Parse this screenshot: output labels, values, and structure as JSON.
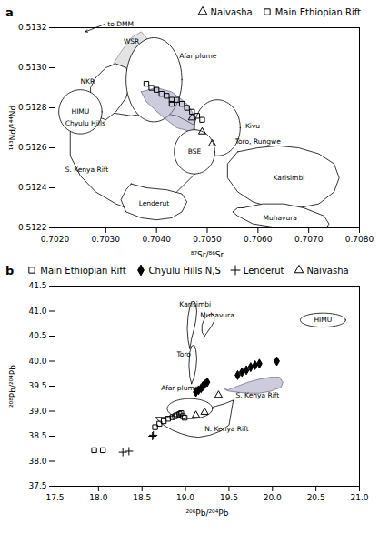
{
  "chart_data": [
    {
      "type": "scatter",
      "title": "a",
      "xlabel": "⁸⁷Sr/⁸⁶Sr",
      "ylabel": "¹⁴³Nd/¹⁴⁴Nd",
      "xlim": [
        0.702,
        0.708
      ],
      "ylim": [
        0.5122,
        0.5132
      ],
      "xticks": [
        {
          "value": 0.702,
          "label": "0.7020"
        },
        {
          "value": 0.703,
          "label": "0.7030"
        },
        {
          "value": 0.704,
          "label": "0.7040"
        },
        {
          "value": 0.705,
          "label": "0.7050"
        },
        {
          "value": 0.706,
          "label": "0.7060"
        },
        {
          "value": 0.707,
          "label": "0.7070"
        },
        {
          "value": 0.708,
          "label": "0.7080"
        }
      ],
      "yticks": [
        0.5122,
        0.5124,
        0.5126,
        0.5128,
        {
          "value": 0.513,
          "label": "0.5130"
        },
        0.5132
      ],
      "legend": "upper right",
      "series": [
        {
          "name": "Naivasha",
          "marker": "triangle_open",
          "color": "black",
          "x": [
            0.7047,
            0.7049,
            0.7051
          ],
          "y": [
            0.51275,
            0.51268,
            0.51262
          ]
        },
        {
          "name": "Main Ethiopian Rift",
          "marker": "square_open",
          "color": "black",
          "x": [
            0.7038,
            0.7039,
            0.704,
            0.7041,
            0.7042,
            0.7043,
            0.7043,
            0.7044,
            0.7045,
            0.7046,
            0.7047,
            0.7048,
            0.7049
          ],
          "y": [
            0.51292,
            0.5129,
            0.51289,
            0.51287,
            0.51286,
            0.51284,
            0.51282,
            0.51284,
            0.51282,
            0.5128,
            0.51278,
            0.51276,
            0.51274
          ]
        }
      ],
      "regions": [
        {
          "type": "polygon",
          "color": "#c8c8c8",
          "x": [
            0.7031,
            0.7033,
            0.7035,
            0.7037,
            0.7038,
            0.7039,
            0.7038,
            0.7036,
            0.7034,
            0.7032,
            0.7031
          ],
          "y": [
            0.513,
            0.51308,
            0.51315,
            0.51318,
            0.51315,
            0.51308,
            0.513,
            0.51295,
            0.51293,
            0.51295,
            0.513
          ]
        },
        {
          "type": "polygon",
          "color": "white",
          "x": [
            0.7026,
            0.703,
            0.7035,
            0.704,
            0.7044,
            0.7047,
            0.705,
            0.7052,
            0.7051,
            0.7048,
            0.7044,
            0.704,
            0.7036,
            0.7032,
            0.7028,
            0.7025,
            0.7023,
            0.7023,
            0.7025,
            0.7026
          ],
          "y": [
            0.5128,
            0.51278,
            0.51276,
            0.51278,
            0.51276,
            0.51272,
            0.51268,
            0.51262,
            0.51255,
            0.51248,
            0.51238,
            0.5123,
            0.51228,
            0.51232,
            0.51238,
            0.51246,
            0.51256,
            0.51268,
            0.51276,
            0.5128
          ]
        },
        {
          "type": "polygon",
          "color": "white",
          "x": [
            0.7056,
            0.706,
            0.7064,
            0.7068,
            0.7072,
            0.7075,
            0.7076,
            0.7075,
            0.7072,
            0.7068,
            0.7063,
            0.7059,
            0.7056,
            0.7054,
            0.7054,
            0.7056
          ],
          "y": [
            0.51258,
            0.5126,
            0.51261,
            0.5126,
            0.51257,
            0.51252,
            0.51245,
            0.51238,
            0.51232,
            0.5123,
            0.5123,
            0.51233,
            0.51238,
            0.51245,
            0.51252,
            0.51258
          ]
        },
        {
          "type": "polygon",
          "color": "white",
          "x": [
            0.7057,
            0.7061,
            0.7065,
            0.7069,
            0.7073,
            0.7074,
            0.7073,
            0.7069,
            0.7064,
            0.7059,
            0.7056,
            0.7055,
            0.7056,
            0.7057
          ],
          "y": [
            0.5123,
            0.51232,
            0.51232,
            0.5123,
            0.51226,
            0.51222,
            0.51218,
            0.51218,
            0.5122,
            0.51222,
            0.51226,
            0.51228,
            0.5123,
            0.5123
          ]
        },
        {
          "type": "polygon",
          "color": "white",
          "x": [
            0.7035,
            0.7038,
            0.7042,
            0.7045,
            0.7046,
            0.7045,
            0.7043,
            0.704,
            0.7037,
            0.7034,
            0.7033,
            0.7034,
            0.7035
          ],
          "y": [
            0.51242,
            0.5124,
            0.51239,
            0.51237,
            0.51233,
            0.51228,
            0.51225,
            0.51224,
            0.51225,
            0.51228,
            0.51234,
            0.51239,
            0.51242
          ]
        },
        {
          "type": "polygon",
          "color": "white",
          "x": [
            0.7028,
            0.703,
            0.7032,
            0.7034,
            0.7035,
            0.7034,
            0.7032,
            0.703,
            0.7028,
            0.7027,
            0.7027,
            0.7028
          ],
          "y": [
            0.51295,
            0.513,
            0.51302,
            0.513,
            0.51294,
            0.51285,
            0.51278,
            0.51274,
            0.51276,
            0.51283,
            0.5129,
            0.51295
          ]
        },
        {
          "type": "ellipse",
          "color": "white",
          "cx": 0.7025,
          "cy": 0.51278,
          "width": 0.00085,
          "height": 0.00022,
          "label": "HIMU"
        },
        {
          "type": "ellipse",
          "color": "white",
          "cx": 0.70395,
          "cy": 0.51294,
          "width": 0.0011,
          "height": 0.00042
        },
        {
          "type": "polygon",
          "color": "#9999bb",
          "x": [
            0.7037,
            0.704,
            0.7043,
            0.7046,
            0.7048,
            0.7047,
            0.7044,
            0.7041,
            0.7038,
            0.7037
          ],
          "y": [
            0.51288,
            0.5129,
            0.51288,
            0.51282,
            0.51274,
            0.51268,
            0.5127,
            0.51276,
            0.51283,
            0.51288
          ]
        },
        {
          "type": "ellipse",
          "color": "white",
          "cx": 0.7052,
          "cy": 0.5127,
          "width": 0.0009,
          "height": 0.00028
        },
        {
          "type": "ellipse",
          "color": "white",
          "cx": 0.70475,
          "cy": 0.51258,
          "width": 0.0008,
          "height": 0.00022,
          "label": "BSE"
        }
      ],
      "annotations": [
        {
          "text": "WSR",
          "x": 0.70335,
          "y": 0.51312
        },
        {
          "text": "to DMM",
          "x": 0.703,
          "y": 0.51322,
          "arrow_x": 0.7026,
          "arrow_y": 0.51318
        },
        {
          "text": "NKR",
          "x": 0.7025,
          "y": 0.51292
        },
        {
          "text": "Chyulu Hills",
          "x": 0.7022,
          "y": 0.51271
        },
        {
          "text": "S. Kenya Rift",
          "x": 0.7022,
          "y": 0.51248
        },
        {
          "text": "Afar plume",
          "x": 0.70445,
          "y": 0.51305
        },
        {
          "text": "Kivu",
          "x": 0.70575,
          "y": 0.5127
        },
        {
          "text": "Toro, Rungwe",
          "x": 0.70555,
          "y": 0.51262
        },
        {
          "text": "Karisimbi",
          "x": 0.7063,
          "y": 0.51244
        },
        {
          "text": "Muhavura",
          "x": 0.7061,
          "y": 0.51224
        },
        {
          "text": "Lenderut",
          "x": 0.70365,
          "y": 0.51231
        }
      ]
    },
    {
      "type": "scatter",
      "title": "b",
      "xlabel": "²⁰⁶Pb/²⁰⁴Pb",
      "ylabel": "²⁰⁸Pb/²⁰⁴Pb",
      "xlim": [
        17.5,
        21.0
      ],
      "ylim": [
        37.5,
        41.5
      ],
      "xticks": [
        17.5,
        {
          "value": 18.0,
          "label": "18.0"
        },
        18.5,
        {
          "value": 19.0,
          "label": "19.0"
        },
        19.5,
        {
          "value": 20.0,
          "label": "20.0"
        },
        20.5,
        {
          "value": 21.0,
          "label": "21.0"
        }
      ],
      "yticks": [
        37.5,
        {
          "value": 38.0,
          "label": "38.0"
        },
        38.5,
        {
          "value": 39.0,
          "label": "39.0"
        },
        39.5,
        {
          "value": 40.0,
          "label": "40.0"
        },
        40.5,
        {
          "value": 41.0,
          "label": "41.0"
        },
        41.5
      ],
      "legend": "upper left",
      "series": [
        {
          "name": "Main Ethiopian Rift",
          "marker": "square_open",
          "color": "black",
          "x": [
            18.65,
            18.7,
            18.75,
            18.8,
            18.85,
            18.88,
            18.9,
            18.93,
            18.95,
            18.97,
            18.99,
            17.95,
            18.05
          ],
          "y": [
            38.68,
            38.75,
            38.8,
            38.85,
            38.88,
            38.9,
            38.92,
            38.94,
            38.96,
            38.9,
            38.87,
            38.22,
            38.22
          ]
        },
        {
          "name": "Chyulu Hills N,S",
          "marker": "diamond_filled",
          "color": "black",
          "x": [
            19.12,
            19.15,
            19.18,
            19.2,
            19.22,
            19.25,
            19.6,
            19.65,
            19.7,
            19.75,
            19.8,
            19.85,
            20.05
          ],
          "y": [
            39.38,
            39.42,
            39.46,
            39.5,
            39.54,
            39.58,
            39.72,
            39.78,
            39.82,
            39.88,
            39.92,
            39.95,
            40.0
          ]
        },
        {
          "name": "Lenderut",
          "marker": "plus",
          "color": "black",
          "x": [
            18.28,
            18.35,
            18.62,
            18.63
          ],
          "y": [
            38.18,
            38.2,
            38.5,
            38.52
          ]
        },
        {
          "name": "Naivasha",
          "marker": "triangle_open",
          "color": "black",
          "x": [
            19.12,
            19.22,
            19.38
          ],
          "y": [
            38.92,
            38.98,
            39.32
          ]
        }
      ],
      "regions": [
        {
          "type": "polygon",
          "color": "white",
          "x": [
            19.05,
            19.07,
            19.1,
            19.12,
            19.13,
            19.12,
            19.1,
            19.07,
            19.05,
            19.03,
            19.02,
            19.03,
            19.05
          ],
          "y": [
            40.25,
            40.45,
            40.65,
            40.82,
            41.0,
            41.12,
            41.2,
            41.18,
            41.08,
            40.9,
            40.65,
            40.42,
            40.25
          ]
        },
        {
          "type": "polygon",
          "color": "white",
          "x": [
            19.22,
            19.26,
            19.3,
            19.33,
            19.33,
            19.3,
            19.26,
            19.22,
            19.19,
            19.19,
            19.22
          ],
          "y": [
            40.5,
            40.6,
            40.7,
            40.8,
            40.9,
            40.95,
            40.92,
            40.85,
            40.72,
            40.58,
            40.5
          ]
        },
        {
          "type": "polygon",
          "color": "white",
          "x": [
            19.07,
            19.1,
            19.12,
            19.13,
            19.12,
            19.1,
            19.07,
            19.05,
            19.04,
            19.05,
            19.07
          ],
          "y": [
            39.55,
            39.68,
            39.85,
            40.05,
            40.22,
            40.32,
            40.3,
            40.18,
            39.92,
            39.68,
            39.55
          ]
        },
        {
          "type": "polygon",
          "color": "white",
          "x": [
            18.65,
            18.75,
            18.85,
            18.95,
            19.05,
            19.15,
            19.25,
            19.35,
            19.45,
            19.55,
            19.5,
            19.4,
            19.28,
            19.15,
            19.05,
            18.95,
            18.85,
            18.75,
            18.65
          ],
          "y": [
            38.88,
            38.88,
            38.9,
            38.93,
            38.96,
            39.0,
            39.05,
            39.1,
            39.15,
            39.22,
            38.72,
            38.6,
            38.52,
            38.48,
            38.5,
            38.55,
            38.62,
            38.72,
            38.88
          ]
        },
        {
          "type": "polygon",
          "color": "#9999bb",
          "x": [
            19.48,
            19.6,
            19.72,
            19.85,
            19.98,
            20.08,
            20.12,
            20.1,
            19.98,
            19.85,
            19.72,
            19.6,
            19.5,
            19.45,
            19.46,
            19.48
          ],
          "y": [
            39.42,
            39.5,
            39.58,
            39.64,
            39.68,
            39.68,
            39.58,
            39.48,
            39.4,
            39.36,
            39.36,
            39.38,
            39.4,
            39.44,
            39.46,
            39.42
          ]
        },
        {
          "type": "ellipse",
          "color": "white",
          "cx": 19.05,
          "cy": 39.05,
          "width": 0.52,
          "height": 0.4
        },
        {
          "type": "ellipse",
          "color": "white",
          "cx": 20.58,
          "cy": 40.82,
          "width": 0.52,
          "height": 0.28,
          "label": "HIMU"
        }
      ],
      "annotations": [
        {
          "text": "Karisimbi",
          "x": 18.93,
          "y": 41.1
        },
        {
          "text": "Muhavura",
          "x": 19.17,
          "y": 40.88
        },
        {
          "text": "Toro",
          "x": 18.9,
          "y": 40.1
        },
        {
          "text": "Afar plume",
          "x": 18.72,
          "y": 39.42
        },
        {
          "text": "S. Kenya Rift",
          "x": 19.58,
          "y": 39.28
        },
        {
          "text": "N. Kenya Rift",
          "x": 19.22,
          "y": 38.6
        }
      ]
    }
  ]
}
